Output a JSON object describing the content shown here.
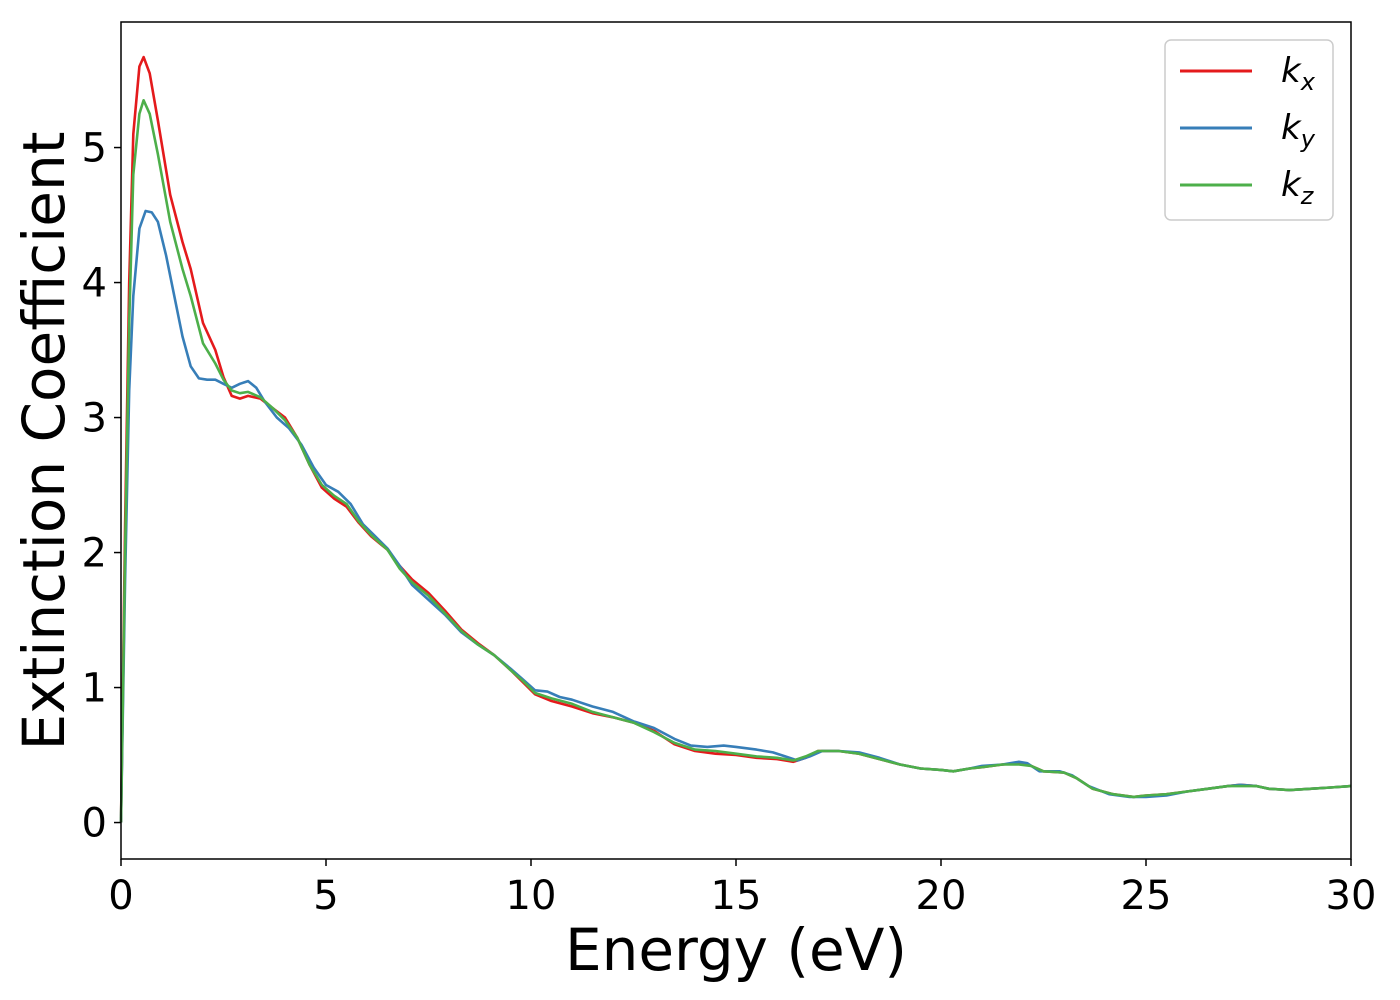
{
  "chart_data": {
    "type": "line",
    "title": "",
    "xlabel": "Energy (eV)",
    "ylabel": "Extinction Coefficient",
    "xlim": [
      0,
      30
    ],
    "ylim": [
      -0.27,
      5.93
    ],
    "xticks": [
      0,
      5,
      10,
      15,
      20,
      25,
      30
    ],
    "yticks": [
      0,
      1,
      2,
      3,
      4,
      5
    ],
    "grid": false,
    "legend_position": "top-right",
    "series": [
      {
        "name": "k",
        "subscript": "x",
        "color": "#e41a1c",
        "points": [
          [
            0,
            0
          ],
          [
            0.1,
            2.2
          ],
          [
            0.2,
            4.0
          ],
          [
            0.3,
            5.1
          ],
          [
            0.45,
            5.6
          ],
          [
            0.55,
            5.67
          ],
          [
            0.7,
            5.55
          ],
          [
            0.9,
            5.2
          ],
          [
            1.2,
            4.65
          ],
          [
            1.5,
            4.3
          ],
          [
            1.7,
            4.1
          ],
          [
            2.0,
            3.7
          ],
          [
            2.3,
            3.5
          ],
          [
            2.5,
            3.3
          ],
          [
            2.7,
            3.16
          ],
          [
            2.9,
            3.14
          ],
          [
            3.1,
            3.16
          ],
          [
            3.4,
            3.14
          ],
          [
            3.7,
            3.07
          ],
          [
            4.0,
            3.0
          ],
          [
            4.3,
            2.85
          ],
          [
            4.6,
            2.65
          ],
          [
            4.9,
            2.48
          ],
          [
            5.2,
            2.4
          ],
          [
            5.5,
            2.34
          ],
          [
            5.8,
            2.22
          ],
          [
            6.1,
            2.12
          ],
          [
            6.5,
            2.02
          ],
          [
            6.8,
            1.9
          ],
          [
            7.1,
            1.8
          ],
          [
            7.5,
            1.7
          ],
          [
            7.9,
            1.57
          ],
          [
            8.3,
            1.43
          ],
          [
            8.7,
            1.33
          ],
          [
            9.1,
            1.24
          ],
          [
            9.5,
            1.13
          ],
          [
            9.8,
            1.04
          ],
          [
            10.1,
            0.95
          ],
          [
            10.5,
            0.9
          ],
          [
            11.0,
            0.86
          ],
          [
            11.5,
            0.81
          ],
          [
            12.0,
            0.78
          ],
          [
            12.5,
            0.74
          ],
          [
            13.0,
            0.68
          ],
          [
            13.5,
            0.58
          ],
          [
            14.0,
            0.53
          ],
          [
            14.5,
            0.51
          ],
          [
            15.0,
            0.5
          ],
          [
            15.5,
            0.48
          ],
          [
            16.0,
            0.47
          ],
          [
            16.4,
            0.45
          ],
          [
            16.7,
            0.48
          ],
          [
            17.0,
            0.53
          ],
          [
            17.5,
            0.53
          ],
          [
            18.0,
            0.51
          ],
          [
            18.5,
            0.47
          ],
          [
            19.0,
            0.43
          ],
          [
            19.5,
            0.4
          ],
          [
            20.0,
            0.39
          ],
          [
            20.3,
            0.38
          ],
          [
            20.7,
            0.4
          ],
          [
            21.0,
            0.41
          ],
          [
            21.5,
            0.43
          ],
          [
            21.9,
            0.44
          ],
          [
            22.2,
            0.42
          ],
          [
            22.5,
            0.38
          ],
          [
            23.0,
            0.37
          ],
          [
            23.3,
            0.33
          ],
          [
            23.7,
            0.25
          ],
          [
            24.2,
            0.21
          ],
          [
            24.7,
            0.19
          ],
          [
            25.0,
            0.2
          ],
          [
            25.5,
            0.21
          ],
          [
            26.0,
            0.23
          ],
          [
            26.5,
            0.25
          ],
          [
            27.0,
            0.27
          ],
          [
            27.3,
            0.28
          ],
          [
            27.7,
            0.27
          ],
          [
            28.0,
            0.25
          ],
          [
            28.5,
            0.24
          ],
          [
            29.0,
            0.25
          ],
          [
            29.5,
            0.26
          ],
          [
            30.0,
            0.27
          ]
        ]
      },
      {
        "name": "k",
        "subscript": "y",
        "color": "#377eb8",
        "points": [
          [
            0,
            0
          ],
          [
            0.1,
            1.8
          ],
          [
            0.2,
            3.2
          ],
          [
            0.3,
            3.9
          ],
          [
            0.45,
            4.4
          ],
          [
            0.6,
            4.53
          ],
          [
            0.75,
            4.52
          ],
          [
            0.9,
            4.45
          ],
          [
            1.1,
            4.2
          ],
          [
            1.3,
            3.9
          ],
          [
            1.5,
            3.6
          ],
          [
            1.7,
            3.38
          ],
          [
            1.9,
            3.29
          ],
          [
            2.1,
            3.28
          ],
          [
            2.3,
            3.28
          ],
          [
            2.5,
            3.25
          ],
          [
            2.7,
            3.22
          ],
          [
            2.9,
            3.25
          ],
          [
            3.1,
            3.27
          ],
          [
            3.3,
            3.22
          ],
          [
            3.5,
            3.12
          ],
          [
            3.8,
            3.0
          ],
          [
            4.1,
            2.92
          ],
          [
            4.4,
            2.8
          ],
          [
            4.7,
            2.63
          ],
          [
            5.0,
            2.5
          ],
          [
            5.3,
            2.45
          ],
          [
            5.6,
            2.36
          ],
          [
            5.9,
            2.21
          ],
          [
            6.2,
            2.12
          ],
          [
            6.5,
            2.03
          ],
          [
            6.8,
            1.9
          ],
          [
            7.1,
            1.76
          ],
          [
            7.5,
            1.65
          ],
          [
            7.9,
            1.54
          ],
          [
            8.3,
            1.41
          ],
          [
            8.7,
            1.32
          ],
          [
            9.1,
            1.24
          ],
          [
            9.5,
            1.14
          ],
          [
            9.8,
            1.06
          ],
          [
            10.1,
            0.98
          ],
          [
            10.4,
            0.97
          ],
          [
            10.7,
            0.93
          ],
          [
            11.0,
            0.91
          ],
          [
            11.5,
            0.86
          ],
          [
            12.0,
            0.82
          ],
          [
            12.5,
            0.75
          ],
          [
            13.0,
            0.7
          ],
          [
            13.5,
            0.62
          ],
          [
            13.9,
            0.57
          ],
          [
            14.3,
            0.56
          ],
          [
            14.7,
            0.57
          ],
          [
            15.0,
            0.56
          ],
          [
            15.5,
            0.54
          ],
          [
            15.9,
            0.52
          ],
          [
            16.2,
            0.49
          ],
          [
            16.5,
            0.46
          ],
          [
            16.8,
            0.49
          ],
          [
            17.1,
            0.53
          ],
          [
            17.5,
            0.53
          ],
          [
            18.0,
            0.52
          ],
          [
            18.5,
            0.48
          ],
          [
            19.0,
            0.43
          ],
          [
            19.5,
            0.4
          ],
          [
            20.0,
            0.39
          ],
          [
            20.3,
            0.38
          ],
          [
            20.7,
            0.4
          ],
          [
            21.0,
            0.42
          ],
          [
            21.5,
            0.43
          ],
          [
            21.9,
            0.45
          ],
          [
            22.1,
            0.44
          ],
          [
            22.4,
            0.38
          ],
          [
            22.9,
            0.38
          ],
          [
            23.2,
            0.35
          ],
          [
            23.6,
            0.27
          ],
          [
            24.1,
            0.21
          ],
          [
            24.6,
            0.19
          ],
          [
            25.0,
            0.19
          ],
          [
            25.5,
            0.2
          ],
          [
            26.0,
            0.23
          ],
          [
            26.5,
            0.25
          ],
          [
            27.0,
            0.27
          ],
          [
            27.3,
            0.28
          ],
          [
            27.7,
            0.27
          ],
          [
            28.0,
            0.25
          ],
          [
            28.5,
            0.24
          ],
          [
            29.0,
            0.25
          ],
          [
            29.5,
            0.26
          ],
          [
            30.0,
            0.27
          ]
        ]
      },
      {
        "name": "k",
        "subscript": "z",
        "color": "#4daf4a",
        "points": [
          [
            0,
            0
          ],
          [
            0.1,
            2.0
          ],
          [
            0.2,
            3.7
          ],
          [
            0.3,
            4.8
          ],
          [
            0.45,
            5.25
          ],
          [
            0.55,
            5.35
          ],
          [
            0.7,
            5.25
          ],
          [
            0.9,
            4.95
          ],
          [
            1.2,
            4.45
          ],
          [
            1.5,
            4.1
          ],
          [
            1.7,
            3.9
          ],
          [
            2.0,
            3.55
          ],
          [
            2.3,
            3.4
          ],
          [
            2.5,
            3.28
          ],
          [
            2.7,
            3.2
          ],
          [
            2.9,
            3.18
          ],
          [
            3.1,
            3.19
          ],
          [
            3.4,
            3.15
          ],
          [
            3.7,
            3.07
          ],
          [
            4.0,
            2.98
          ],
          [
            4.3,
            2.85
          ],
          [
            4.6,
            2.65
          ],
          [
            4.9,
            2.5
          ],
          [
            5.2,
            2.42
          ],
          [
            5.5,
            2.36
          ],
          [
            5.8,
            2.23
          ],
          [
            6.1,
            2.13
          ],
          [
            6.5,
            2.02
          ],
          [
            6.8,
            1.88
          ],
          [
            7.1,
            1.78
          ],
          [
            7.5,
            1.68
          ],
          [
            7.9,
            1.55
          ],
          [
            8.3,
            1.42
          ],
          [
            8.7,
            1.32
          ],
          [
            9.1,
            1.24
          ],
          [
            9.5,
            1.13
          ],
          [
            9.8,
            1.05
          ],
          [
            10.1,
            0.96
          ],
          [
            10.5,
            0.92
          ],
          [
            11.0,
            0.88
          ],
          [
            11.5,
            0.82
          ],
          [
            12.0,
            0.78
          ],
          [
            12.5,
            0.74
          ],
          [
            13.0,
            0.67
          ],
          [
            13.5,
            0.59
          ],
          [
            14.0,
            0.54
          ],
          [
            14.5,
            0.53
          ],
          [
            15.0,
            0.51
          ],
          [
            15.5,
            0.49
          ],
          [
            16.0,
            0.48
          ],
          [
            16.4,
            0.46
          ],
          [
            16.7,
            0.49
          ],
          [
            17.0,
            0.53
          ],
          [
            17.5,
            0.53
          ],
          [
            18.0,
            0.51
          ],
          [
            18.5,
            0.47
          ],
          [
            19.0,
            0.43
          ],
          [
            19.5,
            0.4
          ],
          [
            20.0,
            0.39
          ],
          [
            20.3,
            0.38
          ],
          [
            20.7,
            0.4
          ],
          [
            21.0,
            0.41
          ],
          [
            21.5,
            0.43
          ],
          [
            21.9,
            0.43
          ],
          [
            22.2,
            0.42
          ],
          [
            22.5,
            0.38
          ],
          [
            23.0,
            0.37
          ],
          [
            23.3,
            0.33
          ],
          [
            23.7,
            0.25
          ],
          [
            24.2,
            0.21
          ],
          [
            24.7,
            0.19
          ],
          [
            25.0,
            0.2
          ],
          [
            25.5,
            0.21
          ],
          [
            26.0,
            0.23
          ],
          [
            26.5,
            0.25
          ],
          [
            27.0,
            0.27
          ],
          [
            27.3,
            0.27
          ],
          [
            27.7,
            0.27
          ],
          [
            28.0,
            0.25
          ],
          [
            28.5,
            0.24
          ],
          [
            29.0,
            0.25
          ],
          [
            29.5,
            0.26
          ],
          [
            30.0,
            0.27
          ]
        ]
      }
    ]
  }
}
